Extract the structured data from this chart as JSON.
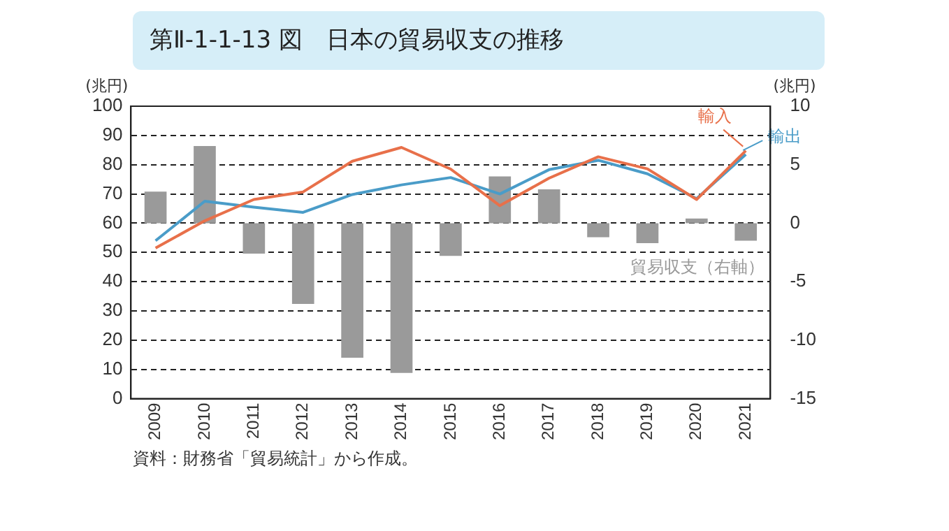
{
  "chart_data": {
    "type": "bar",
    "title": "第Ⅱ-1-1-13 図　日本の貿易収支の推移",
    "ylabel": "(兆円)",
    "y2label": "(兆円)",
    "categories": [
      "2009",
      "2010",
      "2011",
      "2012",
      "2013",
      "2014",
      "2015",
      "2016",
      "2017",
      "2018",
      "2019",
      "2020",
      "2021"
    ],
    "series": [
      {
        "name": "貿易収支（右軸）",
        "axis": "y2",
        "color": "#9a9a9a",
        "values": [
          2.7,
          6.6,
          -2.6,
          -6.9,
          -11.5,
          -12.8,
          -2.8,
          4.0,
          2.9,
          -1.2,
          -1.7,
          0.4,
          -1.5
        ]
      },
      {
        "name": "輸入",
        "type": "line",
        "color": "#e8704a",
        "values": [
          51.5,
          60.8,
          68.1,
          70.7,
          81.2,
          85.9,
          78.5,
          66.0,
          75.4,
          82.7,
          78.6,
          68.1,
          84.8
        ]
      },
      {
        "name": "輸出",
        "type": "line",
        "color": "#4a9cc8",
        "values": [
          54.0,
          67.5,
          65.5,
          63.7,
          69.8,
          73.1,
          75.6,
          70.0,
          78.3,
          81.5,
          76.9,
          68.4,
          83.5
        ]
      }
    ],
    "ylim": [
      0,
      100
    ],
    "yticks": [
      0,
      10,
      20,
      30,
      40,
      50,
      60,
      70,
      80,
      90,
      100
    ],
    "y2lim": [
      -15,
      10
    ],
    "y2ticks": [
      -15,
      -10,
      -5,
      0,
      5,
      10
    ],
    "grid": "y",
    "legend": "right",
    "line_style": "solid",
    "marker": "none",
    "annotations": [
      "資料：財務省「貿易統計」から作成。"
    ]
  }
}
